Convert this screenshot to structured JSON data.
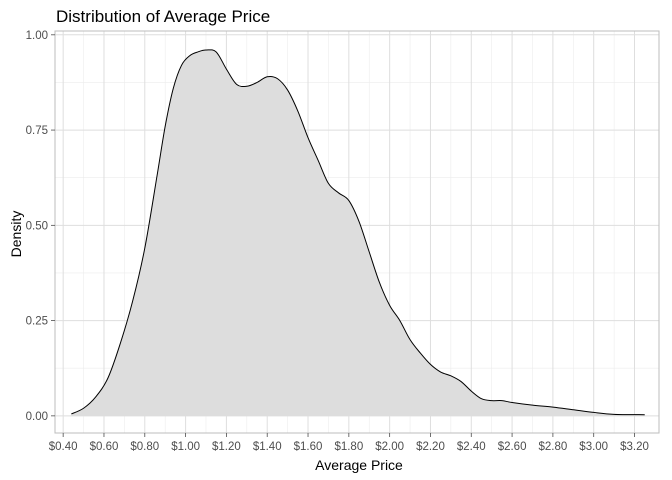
{
  "chart_data": {
    "type": "area",
    "title": "Distribution of Average Price",
    "xlabel": "Average Price",
    "ylabel": "Density",
    "xlim": [
      0.36,
      3.32
    ],
    "ylim": [
      -0.045,
      1.01
    ],
    "x_ticks": [
      {
        "value": 0.4,
        "label": "$0.40"
      },
      {
        "value": 0.6,
        "label": "$0.60"
      },
      {
        "value": 0.8,
        "label": "$0.80"
      },
      {
        "value": 1.0,
        "label": "$1.00"
      },
      {
        "value": 1.2,
        "label": "$1.20"
      },
      {
        "value": 1.4,
        "label": "$1.40"
      },
      {
        "value": 1.6,
        "label": "$1.60"
      },
      {
        "value": 1.8,
        "label": "$1.80"
      },
      {
        "value": 2.0,
        "label": "$2.00"
      },
      {
        "value": 2.2,
        "label": "$2.20"
      },
      {
        "value": 2.4,
        "label": "$2.40"
      },
      {
        "value": 2.6,
        "label": "$2.60"
      },
      {
        "value": 2.8,
        "label": "$2.80"
      },
      {
        "value": 3.0,
        "label": "$3.00"
      },
      {
        "value": 3.2,
        "label": "$3.20"
      }
    ],
    "y_ticks": [
      {
        "value": 0.0,
        "label": "0.00"
      },
      {
        "value": 0.25,
        "label": "0.25"
      },
      {
        "value": 0.5,
        "label": "0.50"
      },
      {
        "value": 0.75,
        "label": "0.75"
      },
      {
        "value": 1.0,
        "label": "1.00"
      }
    ],
    "grid": true,
    "fill_color": "#dddddd",
    "line_color": "#000000",
    "series": [
      {
        "x": [
          0.44,
          0.5,
          0.56,
          0.62,
          0.68,
          0.74,
          0.8,
          0.86,
          0.9,
          0.94,
          0.98,
          1.02,
          1.06,
          1.1,
          1.15,
          1.2,
          1.25,
          1.3,
          1.35,
          1.4,
          1.45,
          1.5,
          1.55,
          1.6,
          1.65,
          1.7,
          1.75,
          1.8,
          1.85,
          1.9,
          1.95,
          2.0,
          2.05,
          2.1,
          2.15,
          2.2,
          2.25,
          2.3,
          2.35,
          2.4,
          2.45,
          2.5,
          2.55,
          2.6,
          2.7,
          2.8,
          2.9,
          3.0,
          3.1,
          3.25
        ],
        "y": [
          0.005,
          0.02,
          0.05,
          0.1,
          0.19,
          0.3,
          0.44,
          0.63,
          0.76,
          0.86,
          0.92,
          0.945,
          0.955,
          0.96,
          0.955,
          0.91,
          0.87,
          0.865,
          0.875,
          0.89,
          0.885,
          0.855,
          0.8,
          0.73,
          0.67,
          0.61,
          0.585,
          0.565,
          0.51,
          0.43,
          0.35,
          0.29,
          0.25,
          0.2,
          0.165,
          0.135,
          0.115,
          0.105,
          0.09,
          0.065,
          0.045,
          0.04,
          0.04,
          0.035,
          0.028,
          0.023,
          0.016,
          0.009,
          0.004,
          0.003
        ]
      }
    ]
  }
}
